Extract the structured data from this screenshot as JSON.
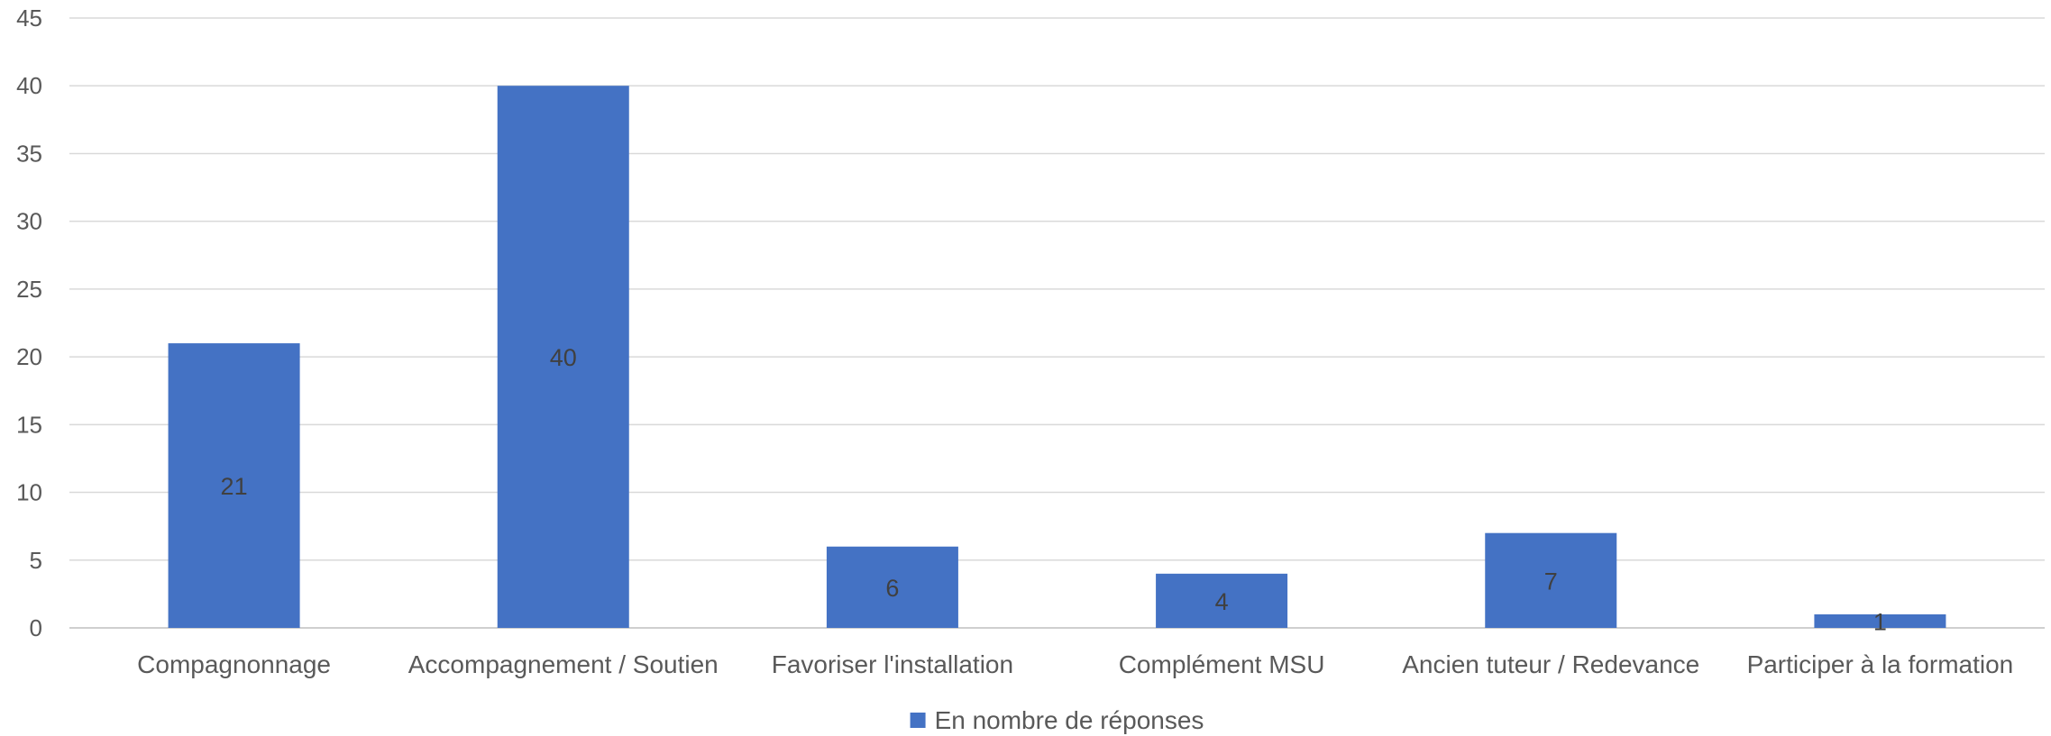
{
  "chart_data": {
    "type": "bar",
    "categories": [
      "Compagnonnage",
      "Accompagnement / Soutien",
      "Favoriser l'installation",
      "Complément MSU",
      "Ancien tuteur / Redevance",
      "Participer à la formation"
    ],
    "series": [
      {
        "name": "En nombre de réponses",
        "values": [
          21,
          40,
          6,
          4,
          7,
          1
        ],
        "color": "#4472C4"
      }
    ],
    "ylim": [
      0,
      45
    ],
    "yticks": [
      0,
      5,
      10,
      15,
      20,
      25,
      30,
      35,
      40,
      45
    ],
    "grid": true,
    "legend_position": "bottom",
    "data_labels": true
  }
}
